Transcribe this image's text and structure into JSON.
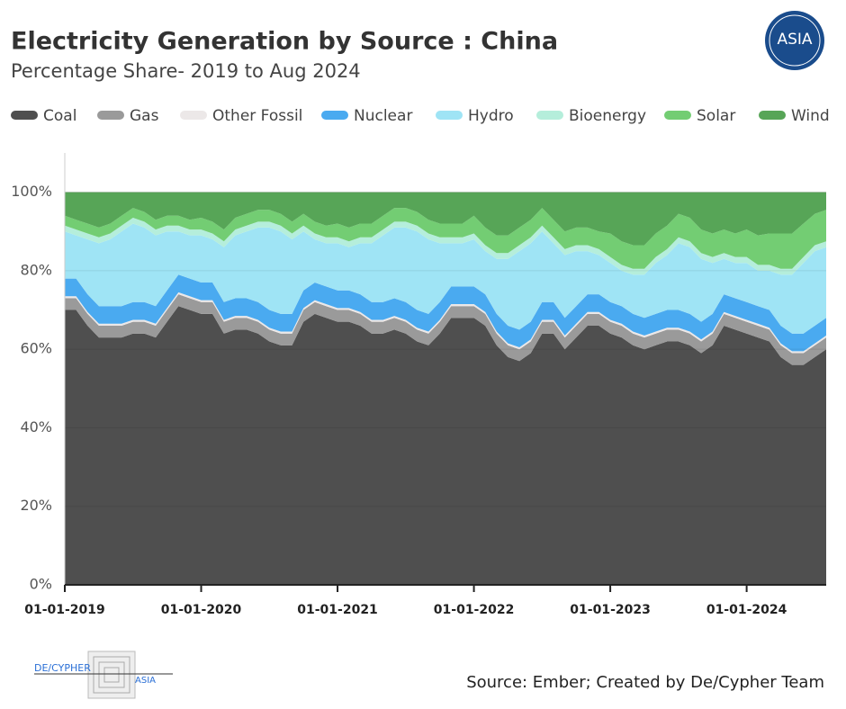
{
  "chart_data": {
    "type": "stacked_area",
    "title": "Electricity Generation by Source : China",
    "subtitle": "Percentage Share- 2019 to Aug 2024",
    "source": "Source: Ember; Created by De/Cypher Team",
    "logo_text": "ASIA",
    "footer_brand": "DE/CYPHER",
    "footer_sub": "ASIA",
    "x": [
      "2019-01-01",
      "2019-02-01",
      "2019-03-01",
      "2019-04-01",
      "2019-05-01",
      "2019-06-01",
      "2019-07-01",
      "2019-08-01",
      "2019-09-01",
      "2019-10-01",
      "2019-11-01",
      "2019-12-01",
      "2020-01-01",
      "2020-02-01",
      "2020-03-01",
      "2020-04-01",
      "2020-05-01",
      "2020-06-01",
      "2020-07-01",
      "2020-08-01",
      "2020-09-01",
      "2020-10-01",
      "2020-11-01",
      "2020-12-01",
      "2021-01-01",
      "2021-02-01",
      "2021-03-01",
      "2021-04-01",
      "2021-05-01",
      "2021-06-01",
      "2021-07-01",
      "2021-08-01",
      "2021-09-01",
      "2021-10-01",
      "2021-11-01",
      "2021-12-01",
      "2022-01-01",
      "2022-02-01",
      "2022-03-01",
      "2022-04-01",
      "2022-05-01",
      "2022-06-01",
      "2022-07-01",
      "2022-08-01",
      "2022-09-01",
      "2022-10-01",
      "2022-11-01",
      "2022-12-01",
      "2023-01-01",
      "2023-02-01",
      "2023-03-01",
      "2023-04-01",
      "2023-05-01",
      "2023-06-01",
      "2023-07-01",
      "2023-08-01",
      "2023-09-01",
      "2023-10-01",
      "2023-11-01",
      "2023-12-01",
      "2024-01-01",
      "2024-02-01",
      "2024-03-01",
      "2024-04-01",
      "2024-05-01",
      "2024-06-01",
      "2024-07-01",
      "2024-08-01"
    ],
    "xticks": [
      {
        "value": "2019-01-01",
        "label": "01-01-2019"
      },
      {
        "value": "2020-01-01",
        "label": "01-01-2020"
      },
      {
        "value": "2021-01-01",
        "label": "01-01-2021"
      },
      {
        "value": "2022-01-01",
        "label": "01-01-2022"
      },
      {
        "value": "2023-01-01",
        "label": "01-01-2023"
      },
      {
        "value": "2024-01-01",
        "label": "01-01-2024"
      }
    ],
    "ylim": [
      0,
      110
    ],
    "yticks": [
      {
        "value": 0,
        "label": "0%"
      },
      {
        "value": 20,
        "label": "20%"
      },
      {
        "value": 40,
        "label": "40%"
      },
      {
        "value": 60,
        "label": "60%"
      },
      {
        "value": 80,
        "label": "80%"
      },
      {
        "value": 100,
        "label": "100%"
      }
    ],
    "grid": true,
    "legend": "top",
    "series": [
      {
        "name": "Coal",
        "color": "#4f4f4f",
        "values": [
          70,
          70,
          66,
          63,
          63,
          63,
          64,
          64,
          63,
          67,
          71,
          70,
          69,
          69,
          64,
          65,
          65,
          64,
          62,
          61,
          61,
          67,
          69,
          68,
          67,
          67,
          66,
          64,
          64,
          65,
          64,
          62,
          61,
          64,
          68,
          68,
          68,
          66,
          61,
          58,
          57,
          59,
          64,
          64,
          60,
          63,
          66,
          66,
          64,
          63,
          61,
          60,
          61,
          62,
          62,
          61,
          59,
          61,
          66,
          65,
          64,
          63,
          62,
          58,
          56,
          56,
          58,
          60
        ]
      },
      {
        "name": "Gas",
        "color": "#9a9a9a",
        "values": [
          3,
          3,
          3,
          3,
          3,
          3,
          3,
          3,
          3,
          3,
          3,
          3,
          3,
          3,
          3,
          3,
          3,
          3,
          3,
          3,
          3,
          3,
          3,
          3,
          3,
          3,
          3,
          3,
          3,
          3,
          3,
          3,
          3,
          3,
          3,
          3,
          3,
          3,
          3,
          3,
          3,
          3,
          3,
          3,
          3,
          3,
          3,
          3,
          3,
          3,
          3,
          3,
          3,
          3,
          3,
          3,
          3,
          3,
          3,
          3,
          3,
          3,
          3,
          3,
          3,
          3,
          3,
          3
        ]
      },
      {
        "name": "Other Fossil",
        "color": "#ece8e8",
        "values": [
          0.5,
          0.5,
          0.5,
          0.5,
          0.5,
          0.5,
          0.5,
          0.5,
          0.5,
          0.5,
          0.5,
          0.5,
          0.5,
          0.5,
          0.5,
          0.5,
          0.5,
          0.5,
          0.5,
          0.5,
          0.5,
          0.5,
          0.5,
          0.5,
          0.5,
          0.5,
          0.5,
          0.5,
          0.5,
          0.5,
          0.5,
          0.5,
          0.5,
          0.5,
          0.5,
          0.5,
          0.5,
          0.5,
          0.5,
          0.5,
          0.5,
          0.5,
          0.5,
          0.5,
          0.5,
          0.5,
          0.5,
          0.5,
          0.5,
          0.5,
          0.5,
          0.5,
          0.5,
          0.5,
          0.5,
          0.5,
          0.5,
          0.5,
          0.5,
          0.5,
          0.5,
          0.5,
          0.5,
          0.5,
          0.5,
          0.5,
          0.5,
          0.5
        ]
      },
      {
        "name": "Nuclear",
        "color": "#4aaaf0",
        "values": [
          4.5,
          4.5,
          4.5,
          4.5,
          4.5,
          4.5,
          4.5,
          4.5,
          4.5,
          4.5,
          4.5,
          4.5,
          4.5,
          4.5,
          4.5,
          4.5,
          4.5,
          4.5,
          4.5,
          4.5,
          4.5,
          4.5,
          4.5,
          4.5,
          4.5,
          4.5,
          4.5,
          4.5,
          4.5,
          4.5,
          4.5,
          4.5,
          4.5,
          4.5,
          4.5,
          4.5,
          4.5,
          4.5,
          4.5,
          4.5,
          4.5,
          4.5,
          4.5,
          4.5,
          4.5,
          4.5,
          4.5,
          4.5,
          4.5,
          4.5,
          4.5,
          4.5,
          4.5,
          4.5,
          4.5,
          4.5,
          4.5,
          4.5,
          4.5,
          4.5,
          4.5,
          4.5,
          4.5,
          4.5,
          4.5,
          4.5,
          4.5,
          4.5
        ]
      },
      {
        "name": "Hydro",
        "color": "#9fe4f5",
        "values": [
          12,
          11,
          14,
          16,
          17,
          19,
          20,
          19,
          18,
          15,
          11,
          11,
          12,
          11,
          14,
          16,
          17,
          19,
          21,
          21,
          19,
          15,
          11,
          11,
          12,
          11,
          13,
          15,
          17,
          18,
          19,
          20,
          19,
          15,
          11,
          11,
          12,
          11,
          14,
          17,
          20,
          20,
          18,
          15,
          16,
          14,
          11,
          10,
          10,
          9,
          10,
          11,
          13,
          14,
          17,
          17,
          16,
          13,
          9,
          9,
          10,
          9,
          10,
          13,
          15,
          18,
          19,
          18
        ]
      },
      {
        "name": "Bioenergy",
        "color": "#b5eedb",
        "values": [
          1.5,
          1.5,
          1.5,
          1.5,
          1.5,
          1.5,
          1.5,
          1.5,
          1.5,
          1.5,
          1.5,
          1.5,
          1.5,
          1.5,
          1.5,
          1.5,
          1.5,
          1.5,
          1.5,
          1.5,
          1.5,
          1.5,
          1.5,
          1.5,
          1.5,
          1.5,
          1.5,
          1.5,
          1.5,
          1.5,
          1.5,
          1.5,
          1.5,
          1.5,
          1.5,
          1.5,
          1.5,
          1.5,
          1.5,
          1.5,
          1.5,
          1.5,
          1.5,
          1.5,
          1.5,
          1.5,
          1.5,
          1.5,
          1.5,
          1.5,
          1.5,
          1.5,
          1.5,
          1.5,
          1.5,
          1.5,
          1.5,
          1.5,
          1.5,
          1.5,
          1.5,
          1.5,
          1.5,
          1.5,
          1.5,
          1.5,
          1.5,
          1.5
        ]
      },
      {
        "name": "Solar",
        "color": "#73cd73",
        "values": [
          2.5,
          2.5,
          2.5,
          2.5,
          2.5,
          2.5,
          2.5,
          2.5,
          2.5,
          2.5,
          2.5,
          2.5,
          3,
          3,
          3,
          3,
          3,
          3,
          3,
          3,
          3,
          3,
          3,
          3,
          3.5,
          3.5,
          3.5,
          3.5,
          3.5,
          3.5,
          3.5,
          3.5,
          3.5,
          3.5,
          3.5,
          3.5,
          4.5,
          4.5,
          4.5,
          4.5,
          4.5,
          4.5,
          4.5,
          4.5,
          4.5,
          4.5,
          4.5,
          4.5,
          6,
          6,
          6,
          6,
          6,
          6,
          6,
          6,
          6,
          6,
          6,
          6,
          7,
          7.5,
          8,
          9,
          9,
          8.5,
          8,
          8
        ]
      },
      {
        "name": "Wind",
        "color": "#57a557",
        "values": [
          6,
          7,
          8,
          9,
          8,
          6,
          4,
          5,
          7,
          6,
          6,
          7,
          6.5,
          7.5,
          9.5,
          6.5,
          5.5,
          4.5,
          4.5,
          5.5,
          7.5,
          5.5,
          7.5,
          8.5,
          8,
          9,
          8,
          8,
          6,
          4,
          4,
          5,
          7,
          8,
          8,
          8,
          6,
          9,
          11,
          11,
          9,
          7,
          4,
          7,
          10,
          9,
          9,
          10,
          10.5,
          12.5,
          13.5,
          13.5,
          10.5,
          8.5,
          5.5,
          6.5,
          9.5,
          10.5,
          9.5,
          10.5,
          9.5,
          11,
          10.5,
          10.5,
          10.5,
          8,
          5.5,
          4.5
        ]
      }
    ]
  }
}
